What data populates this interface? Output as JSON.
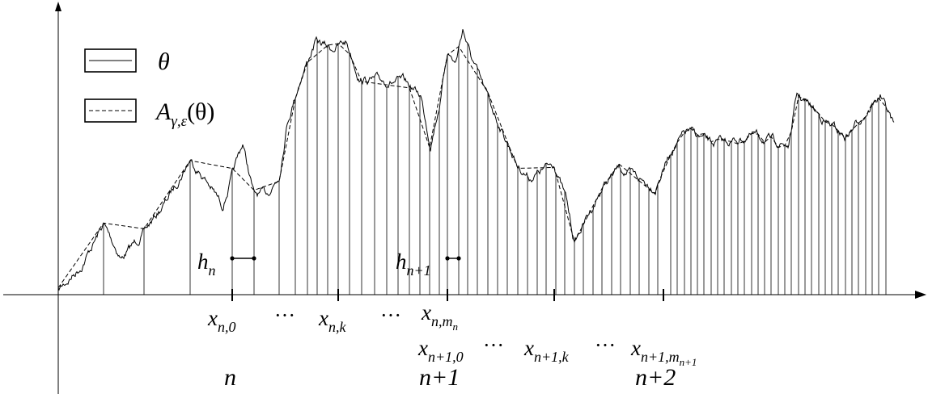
{
  "legend": {
    "items": [
      {
        "symbol": "θ",
        "line_style": "solid"
      },
      {
        "symbol": "A",
        "sub": "γ,ε",
        "tail": "(θ)",
        "line_style": "dashed"
      }
    ]
  },
  "labels": {
    "h_n": {
      "main": "h",
      "sub": "n"
    },
    "h_n1": {
      "main": "h",
      "sub": "n+1"
    },
    "x_n0": {
      "main": "x",
      "sub": "n,0"
    },
    "x_nk": {
      "main": "x",
      "sub": "n,k"
    },
    "x_nmn": {
      "main": "x",
      "sub": "n,m",
      "subsub": "n"
    },
    "x_n10": {
      "main": "x",
      "sub": "n+1,0"
    },
    "x_n1k": {
      "main": "x",
      "sub": "n+1,k"
    },
    "x_n1m": {
      "main": "x",
      "sub": "n+1,m",
      "subsub": "n+1"
    },
    "dots": "···",
    "n": "n",
    "n1": "n+1",
    "n2": "n+2"
  },
  "colors": {
    "stroke": "#000000",
    "background": "#ffffff"
  }
}
